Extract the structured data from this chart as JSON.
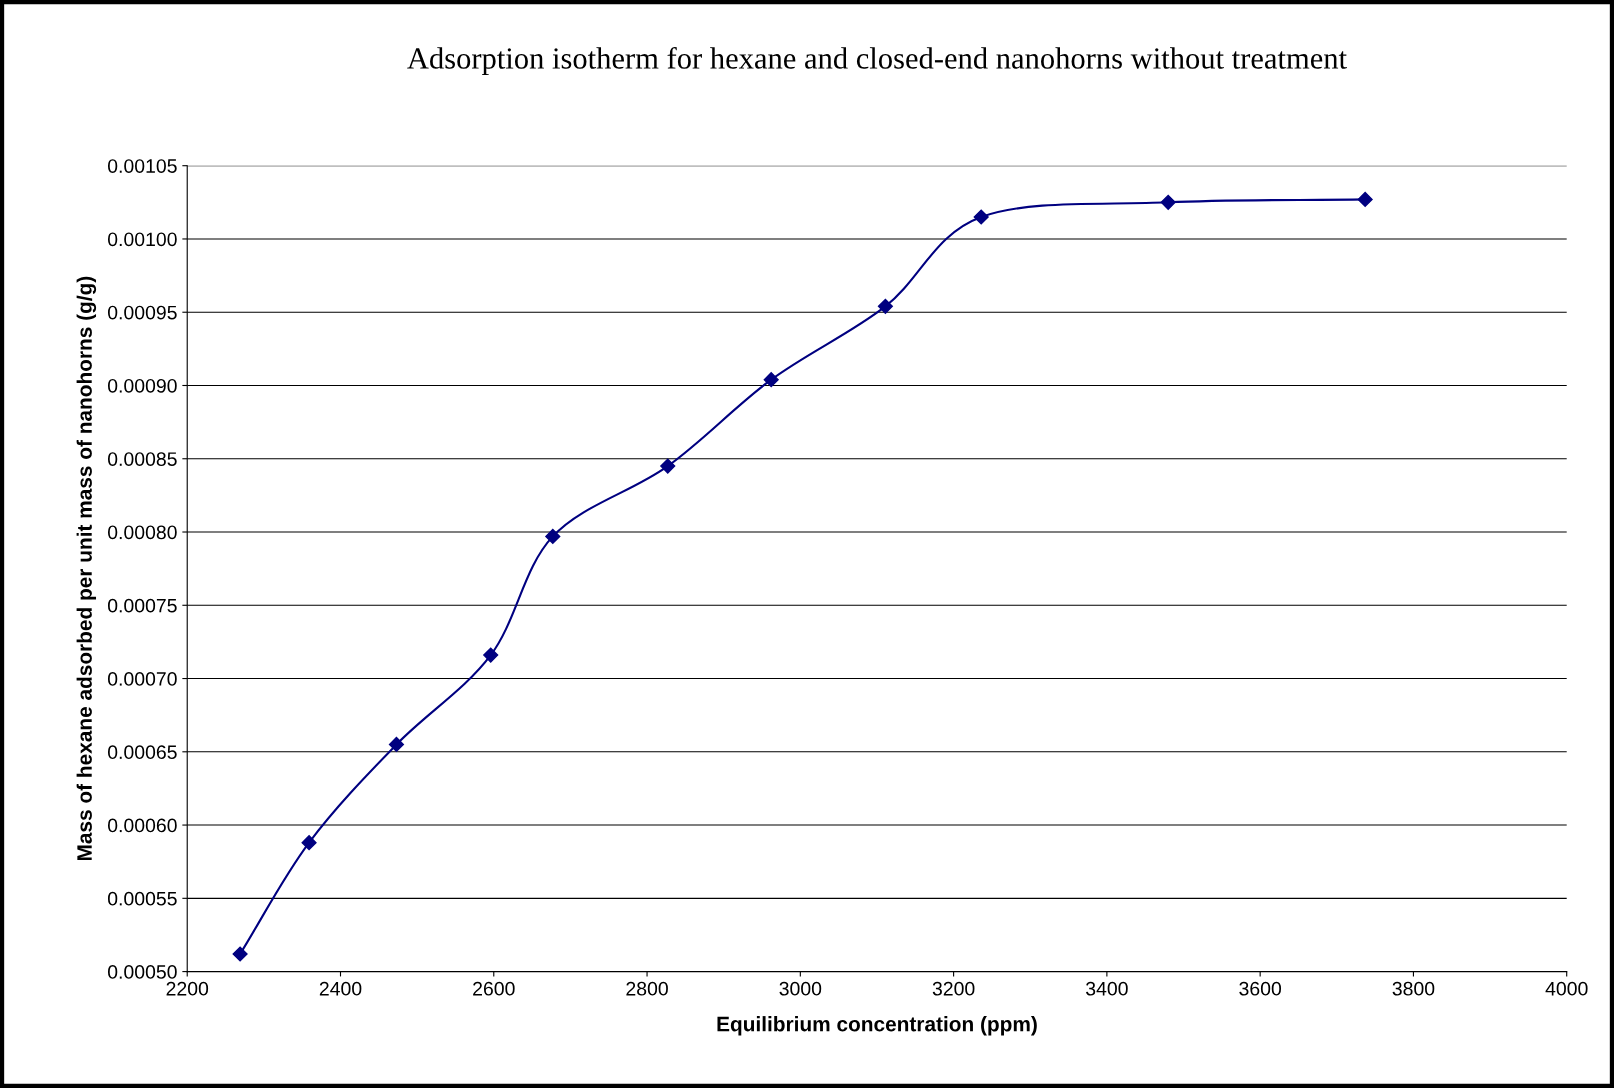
{
  "chart_data": {
    "type": "line",
    "title": "Adsorption isotherm for hexane and closed-end nanohorns without treatment",
    "xlabel": "Equilibrium concentration (ppm)",
    "ylabel": "Mass of hexane adsorbed per unit mass of nanohorns (g/g)",
    "series": [
      {
        "color": "#000080",
        "x": [
          2269,
          2359,
          2473,
          2596,
          2677,
          2827,
          2962,
          3111,
          3236,
          3480,
          3737
        ],
        "values": [
          0.000512,
          0.000588,
          0.000655,
          0.000716,
          0.000797,
          0.000845,
          0.000904,
          0.000954,
          0.001015,
          0.001025,
          0.001027
        ]
      }
    ],
    "xlim": [
      2200,
      4000
    ],
    "xticks": [
      2200,
      2400,
      2600,
      2800,
      3000,
      3200,
      3400,
      3600,
      3800,
      4000
    ],
    "ylim": [
      0.0005,
      0.00105
    ],
    "yticks": [
      {
        "value": 0.0005,
        "label": "0.00050"
      },
      {
        "value": 0.00055,
        "label": "0.00055"
      },
      {
        "value": 0.0006,
        "label": "0.00060"
      },
      {
        "value": 0.00065,
        "label": "0.00065"
      },
      {
        "value": 0.0007,
        "label": "0.00070"
      },
      {
        "value": 0.00075,
        "label": "0.00075"
      },
      {
        "value": 0.0008,
        "label": "0.00080"
      },
      {
        "value": 0.00085,
        "label": "0.00085"
      },
      {
        "value": 0.0009,
        "label": "0.00090"
      },
      {
        "value": 0.00095,
        "label": "0.00095"
      },
      {
        "value": 0.001,
        "label": "0.00100"
      },
      {
        "value": 0.00105,
        "label": "0.00105"
      }
    ],
    "grid": "y",
    "marker": "diamond",
    "line_style": "solid",
    "legend": false
  }
}
